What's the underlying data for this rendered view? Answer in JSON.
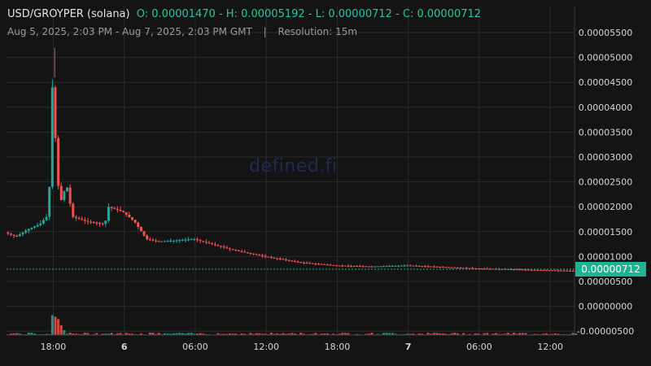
{
  "header": {
    "pair": "USD/GROYPER (solana)",
    "ohlc": "O: 0.00001470 - H: 0.00005192 - L: 0.00000712 - C: 0.00000712",
    "range": "Aug 5, 2025, 2:03 PM - Aug 7, 2025, 2:03 PM GMT",
    "separator": "|",
    "resolution": "Resolution: 15m"
  },
  "watermark": "defined.fi",
  "last_price_label": "0.00000712",
  "colors": {
    "up": "#26a69a",
    "down": "#ef5350",
    "background": "#141414",
    "grid": "#2b2b2b",
    "price_tag": "#1db393"
  },
  "chart_data": {
    "type": "candlestick",
    "resolution": "15m",
    "x_range": [
      "2025-08-05 14:03",
      "2025-08-07 14:03"
    ],
    "x_ticks": [
      "18:00",
      "6",
      "06:00",
      "12:00",
      "18:00",
      "7",
      "06:00",
      "12:00"
    ],
    "y_ticks": [
      "0.00005500",
      "0.00005000",
      "0.00004500",
      "0.00004000",
      "0.00003500",
      "0.00003000",
      "0.00002500",
      "0.00002000",
      "0.00001500",
      "0.00001000",
      "0.00000500",
      "0.00000000",
      "-0.00000500"
    ],
    "ylim": [
      -5.5e-06,
      5.75e-05
    ],
    "open": 1.47e-05,
    "high": 5.192e-05,
    "low": 7.12e-06,
    "close": 7.12e-06,
    "last_price": 7.12e-06,
    "price_path": [
      {
        "t": "2025-08-05 14:03",
        "p": 1.48e-05
      },
      {
        "t": "2025-08-05 15:00",
        "p": 1.4e-05
      },
      {
        "t": "2025-08-05 16:00",
        "p": 1.55e-05
      },
      {
        "t": "2025-08-05 17:00",
        "p": 1.65e-05
      },
      {
        "t": "2025-08-05 17:45",
        "p": 1.85e-05
      },
      {
        "t": "2025-08-05 18:00",
        "p": 4.6e-05
      },
      {
        "t": "2025-08-05 18:15",
        "p": 3.6e-05
      },
      {
        "t": "2025-08-05 18:30",
        "p": 2.5e-05
      },
      {
        "t": "2025-08-05 18:45",
        "p": 2.1e-05
      },
      {
        "t": "2025-08-05 19:15",
        "p": 2.45e-05
      },
      {
        "t": "2025-08-05 19:45",
        "p": 1.8e-05
      },
      {
        "t": "2025-08-05 21:00",
        "p": 1.7e-05
      },
      {
        "t": "2025-08-05 22:30",
        "p": 1.65e-05
      },
      {
        "t": "2025-08-05 22:45",
        "p": 2e-05
      },
      {
        "t": "2025-08-06 00:00",
        "p": 1.9e-05
      },
      {
        "t": "2025-08-06 01:00",
        "p": 1.7e-05
      },
      {
        "t": "2025-08-06 02:00",
        "p": 1.35e-05
      },
      {
        "t": "2025-08-06 03:00",
        "p": 1.3e-05
      },
      {
        "t": "2025-08-06 06:00",
        "p": 1.35e-05
      },
      {
        "t": "2025-08-06 09:00",
        "p": 1.15e-05
      },
      {
        "t": "2025-08-06 12:00",
        "p": 1e-05
      },
      {
        "t": "2025-08-06 15:00",
        "p": 8.8e-06
      },
      {
        "t": "2025-08-06 18:00",
        "p": 8.2e-06
      },
      {
        "t": "2025-08-06 21:00",
        "p": 8e-06
      },
      {
        "t": "2025-08-07 00:00",
        "p": 8.2e-06
      },
      {
        "t": "2025-08-07 06:00",
        "p": 7.6e-06
      },
      {
        "t": "2025-08-07 14:03",
        "p": 7.12e-06
      }
    ],
    "volume_path": [
      {
        "t": "2025-08-05 17:45",
        "v": 4e-06
      },
      {
        "t": "2025-08-05 18:00",
        "v": 3.7e-06
      },
      {
        "t": "2025-08-05 18:15",
        "v": 3.2e-06
      },
      {
        "t": "2025-08-05 18:30",
        "v": 2e-06
      },
      {
        "t": "2025-08-05 18:45",
        "v": 1e-06
      },
      {
        "t": "2025-08-06 02:00",
        "v": 5e-07
      }
    ]
  }
}
